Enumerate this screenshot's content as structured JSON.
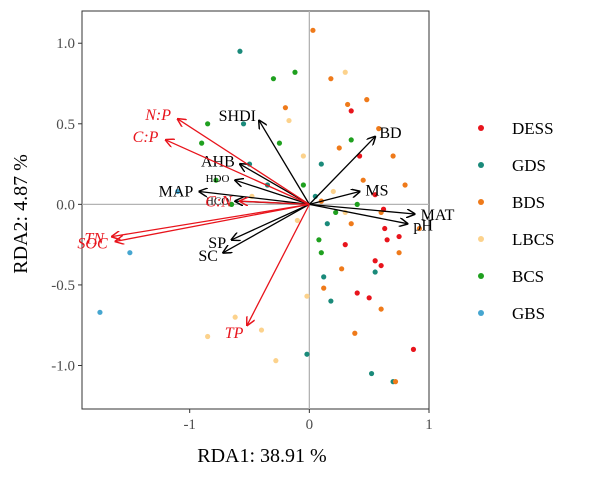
{
  "chart_data": {
    "type": "scatter",
    "xlabel": "RDA1: 38.91 %",
    "ylabel": "RDA2: 4.87 %",
    "xlim": [
      -1.9,
      1.0
    ],
    "ylim": [
      -1.27,
      1.2
    ],
    "x_ticks": [
      -1,
      0,
      1
    ],
    "y_ticks": [
      -1.0,
      -0.5,
      0.0,
      0.5,
      1.0
    ],
    "x_tick_labels": [
      "-1",
      "0",
      "1"
    ],
    "y_tick_labels": [
      "-1.0",
      "-0.5",
      "0.0",
      "0.5",
      "1.0"
    ],
    "grid": false,
    "zero_lines": true,
    "legend_position": "right",
    "series": [
      {
        "name": "DESS",
        "color": "#e8141c",
        "points": [
          [
            0.55,
            0.06
          ],
          [
            0.62,
            -0.03
          ],
          [
            0.63,
            -0.15
          ],
          [
            0.65,
            -0.22
          ],
          [
            0.55,
            -0.35
          ],
          [
            0.5,
            -0.58
          ],
          [
            0.75,
            -0.2
          ],
          [
            0.87,
            -0.9
          ],
          [
            0.42,
            0.3
          ],
          [
            0.35,
            0.58
          ],
          [
            0.3,
            -0.25
          ],
          [
            0.6,
            -0.38
          ],
          [
            0.4,
            -0.55
          ]
        ]
      },
      {
        "name": "GDS",
        "color": "#1a8a7a",
        "points": [
          [
            -0.58,
            0.95
          ],
          [
            -0.55,
            0.5
          ],
          [
            -0.5,
            0.25
          ],
          [
            -0.35,
            0.12
          ],
          [
            0.15,
            -0.12
          ],
          [
            0.12,
            -0.45
          ],
          [
            0.18,
            -0.6
          ],
          [
            0.05,
            0.05
          ],
          [
            0.1,
            0.25
          ],
          [
            0.55,
            -0.42
          ],
          [
            0.52,
            -1.05
          ],
          [
            0.7,
            -1.1
          ],
          [
            -0.02,
            -0.93
          ]
        ]
      },
      {
        "name": "BDS",
        "color": "#ef7a1a",
        "points": [
          [
            0.03,
            1.08
          ],
          [
            0.18,
            0.78
          ],
          [
            0.32,
            0.62
          ],
          [
            0.48,
            0.65
          ],
          [
            0.58,
            0.47
          ],
          [
            0.7,
            0.3
          ],
          [
            0.8,
            0.12
          ],
          [
            0.45,
            0.15
          ],
          [
            0.92,
            -0.15
          ],
          [
            0.6,
            -0.05
          ],
          [
            0.75,
            -0.3
          ],
          [
            0.35,
            -0.12
          ],
          [
            0.27,
            -0.4
          ],
          [
            0.12,
            -0.52
          ],
          [
            0.6,
            -0.65
          ],
          [
            0.72,
            -1.1
          ],
          [
            0.38,
            -0.8
          ],
          [
            -0.2,
            0.6
          ],
          [
            0.1,
            0.02
          ],
          [
            0.25,
            0.35
          ]
        ]
      },
      {
        "name": "LBCS",
        "color": "#fcd28c",
        "points": [
          [
            0.3,
            0.82
          ],
          [
            -0.17,
            0.52
          ],
          [
            -0.05,
            0.3
          ],
          [
            -0.1,
            -0.1
          ],
          [
            -0.62,
            -0.7
          ],
          [
            -0.85,
            -0.82
          ],
          [
            -0.4,
            -0.78
          ],
          [
            -0.28,
            -0.97
          ],
          [
            -0.02,
            -0.57
          ],
          [
            0.2,
            0.08
          ],
          [
            0.3,
            -0.05
          ],
          [
            -0.48,
            0.05
          ]
        ]
      },
      {
        "name": "BCS",
        "color": "#1fa01f",
        "points": [
          [
            -0.3,
            0.78
          ],
          [
            -0.12,
            0.82
          ],
          [
            -0.25,
            0.38
          ],
          [
            -0.85,
            0.5
          ],
          [
            -0.9,
            0.38
          ],
          [
            -0.78,
            0.15
          ],
          [
            -0.65,
            0.0
          ],
          [
            -0.05,
            0.12
          ],
          [
            0.1,
            -0.3
          ],
          [
            0.22,
            -0.05
          ],
          [
            0.35,
            0.4
          ],
          [
            0.08,
            -0.22
          ],
          [
            0.4,
            0.0
          ]
        ]
      },
      {
        "name": "GBS",
        "color": "#46a6d0",
        "points": [
          [
            -1.75,
            -0.67
          ],
          [
            -1.5,
            -0.3
          ],
          [
            -1.1,
            0.08
          ]
        ]
      }
    ],
    "vectors_black": [
      {
        "label": "SHDI",
        "x": -0.42,
        "y": 0.52
      },
      {
        "label": "AHB",
        "x": -0.58,
        "y": 0.25
      },
      {
        "label": "HDO",
        "x": -0.62,
        "y": 0.15
      },
      {
        "label": "MAP",
        "x": -0.92,
        "y": 0.08
      },
      {
        "label": "HCO",
        "x": -0.62,
        "y": 0.02
      },
      {
        "label": "SP",
        "x": -0.65,
        "y": -0.22
      },
      {
        "label": "SC",
        "x": -0.72,
        "y": -0.3
      },
      {
        "label": "BD",
        "x": 0.55,
        "y": 0.42
      },
      {
        "label": "MS",
        "x": 0.42,
        "y": 0.08
      },
      {
        "label": "MAT",
        "x": 0.88,
        "y": -0.06
      },
      {
        "label": "pH",
        "x": 0.82,
        "y": -0.12
      }
    ],
    "vectors_red": [
      {
        "label": "N:P",
        "x": -1.1,
        "y": 0.53
      },
      {
        "label": "C:P",
        "x": -1.2,
        "y": 0.4
      },
      {
        "label": "C:N",
        "x": -0.58,
        "y": 0.02
      },
      {
        "label": "TN",
        "x": -1.65,
        "y": -0.2
      },
      {
        "label": "SOC",
        "x": -1.62,
        "y": -0.23
      },
      {
        "label": "TP",
        "x": -0.52,
        "y": -0.75
      }
    ]
  }
}
